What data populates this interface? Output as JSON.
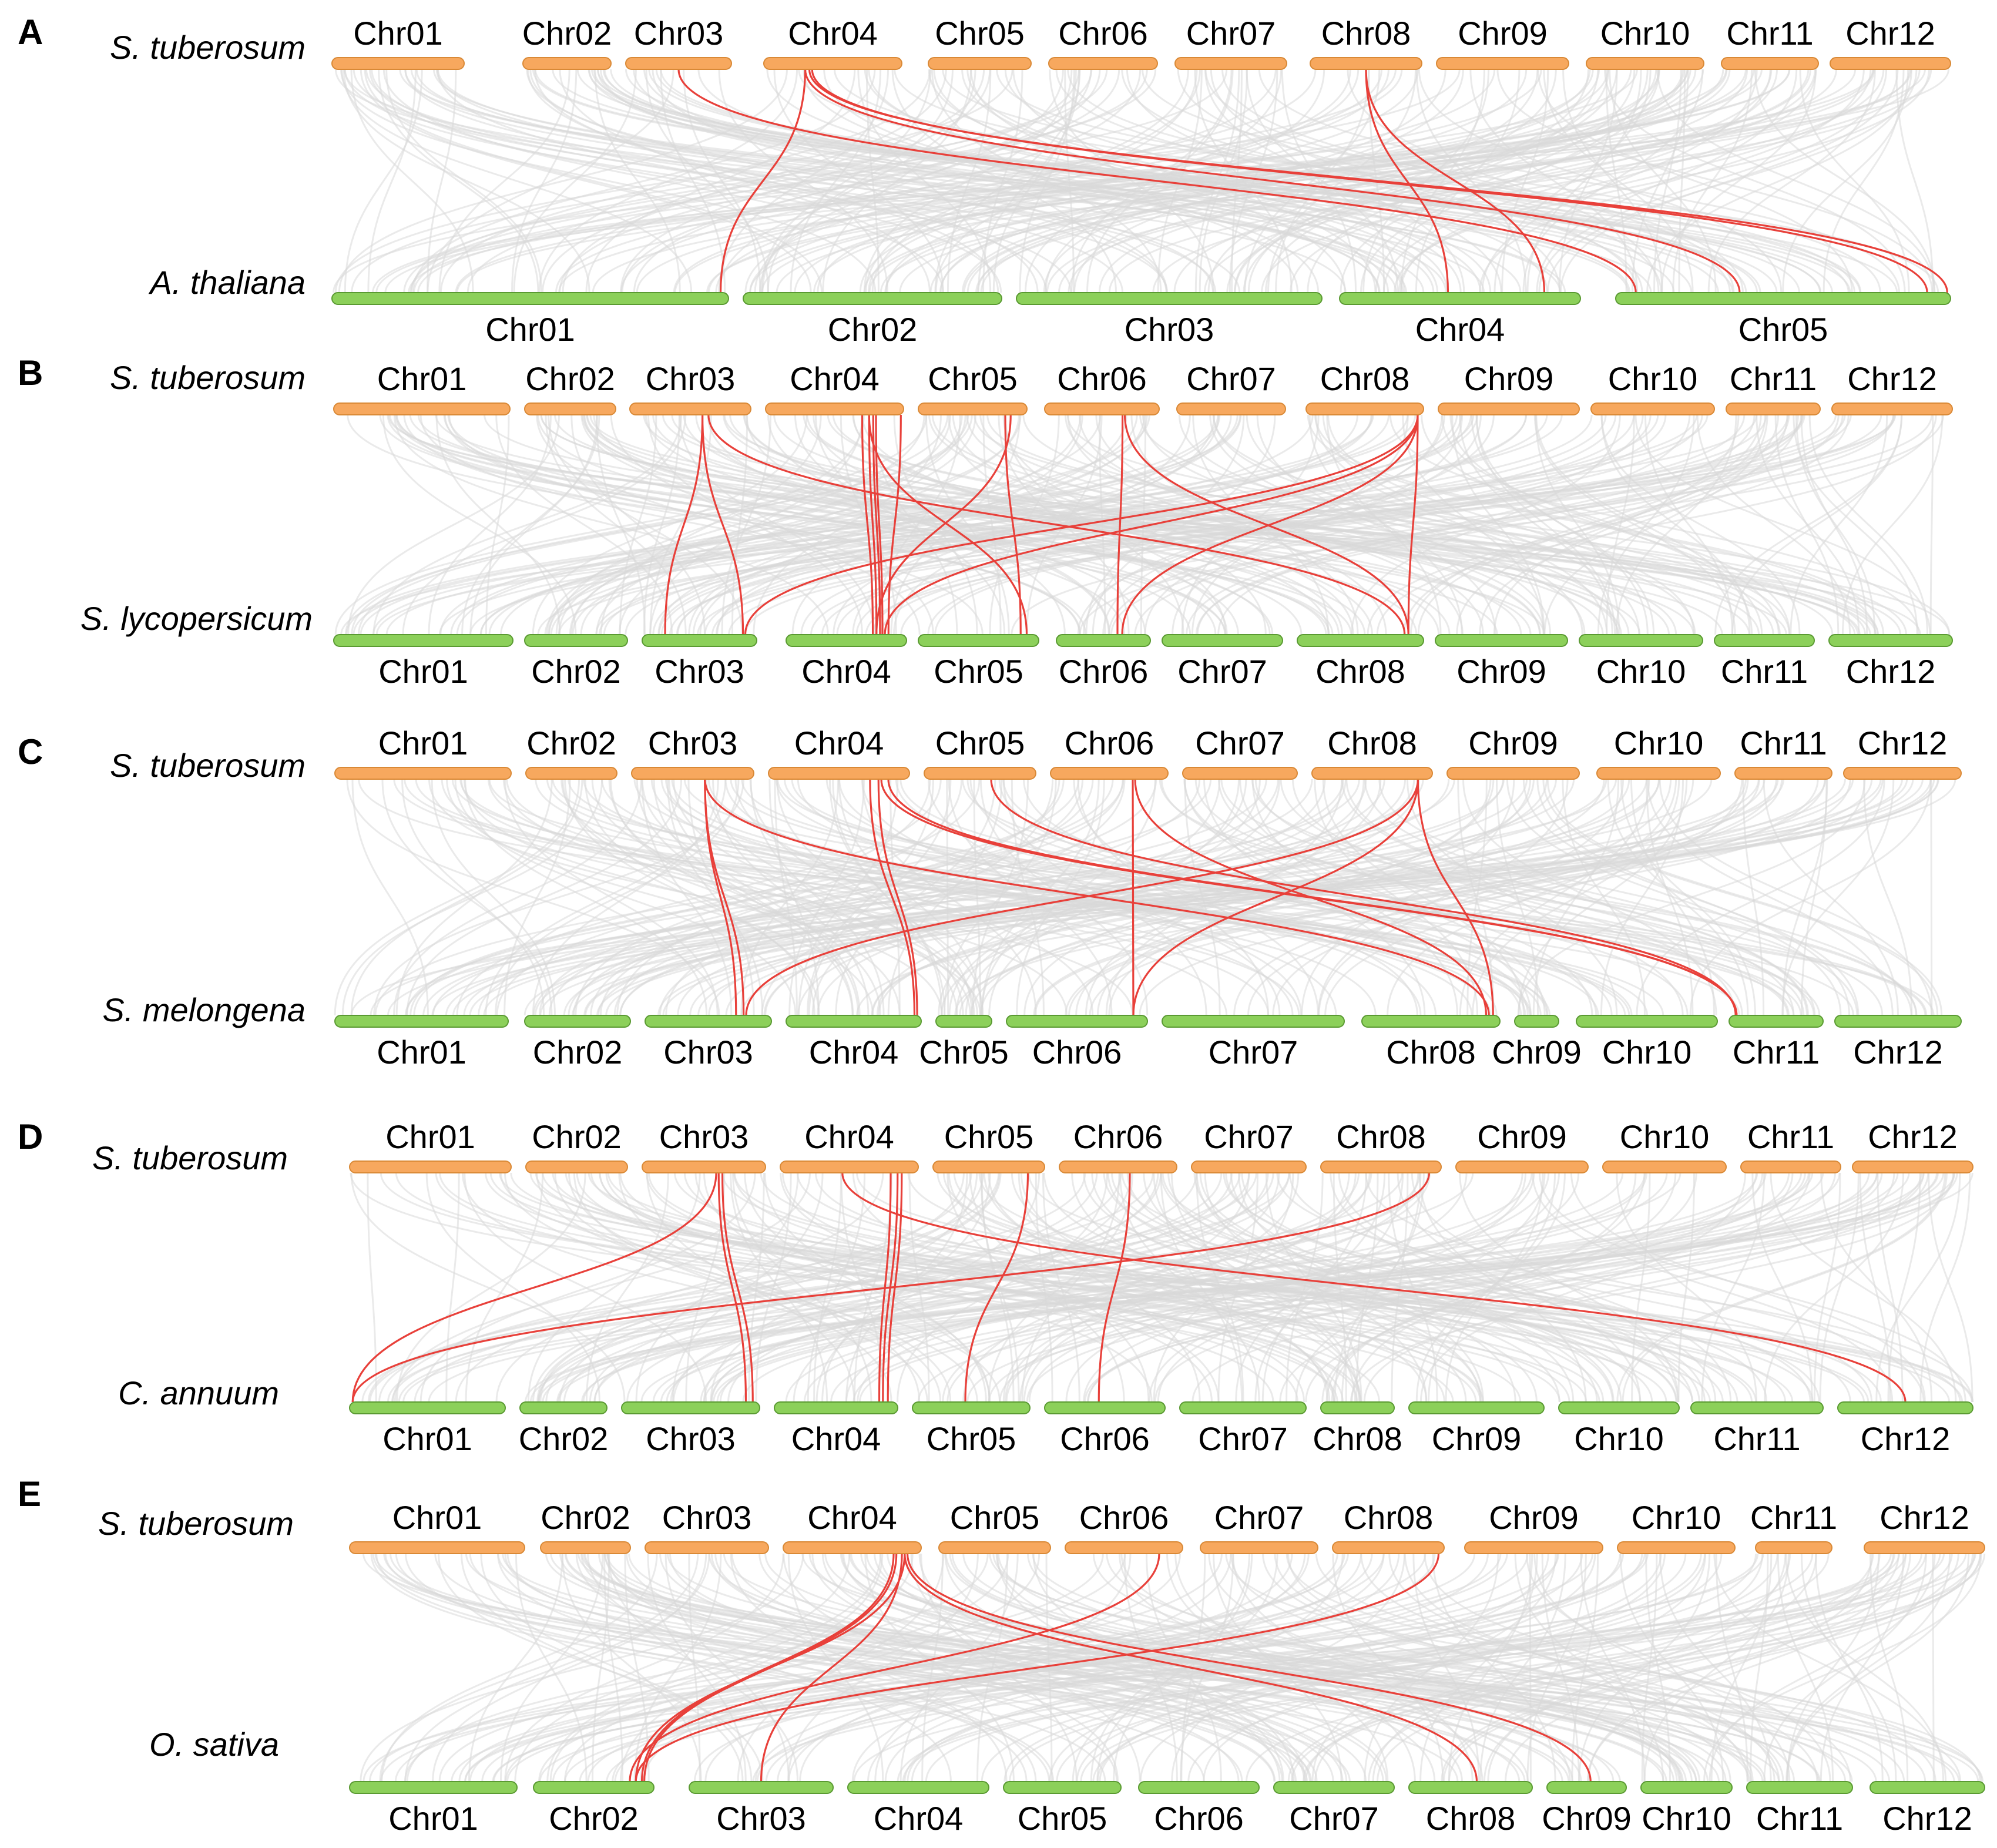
{
  "colors": {
    "top_bar": "#f7a85e",
    "top_bar_edge": "#d98936",
    "bottom_bar": "#8cd05a",
    "bottom_bar_edge": "#5a9a32",
    "highlight_link": "#e8403a",
    "background_link": "#d9d9d9"
  },
  "panels": [
    {
      "letter": "A",
      "top_species": "S. tuberosum",
      "bottom_species": "A. thaliana",
      "top_chromosomes": [
        "Chr01",
        "Chr02",
        "Chr03",
        "Chr04",
        "Chr05",
        "Chr06",
        "Chr07",
        "Chr08",
        "Chr09",
        "Chr10",
        "Chr11",
        "Chr12"
      ],
      "bottom_chromosomes": [
        "Chr01",
        "Chr02",
        "Chr03",
        "Chr04",
        "Chr05"
      ],
      "bottom_label_position": "below"
    },
    {
      "letter": "B",
      "top_species": "S. tuberosum",
      "bottom_species": "S. lycopersicum",
      "top_chromosomes": [
        "Chr01",
        "Chr02",
        "Chr03",
        "Chr04",
        "Chr05",
        "Chr06",
        "Chr07",
        "Chr08",
        "Chr09",
        "Chr10",
        "Chr11",
        "Chr12"
      ],
      "bottom_chromosomes": [
        "Chr01",
        "Chr02",
        "Chr03",
        "Chr04",
        "Chr05",
        "Chr06",
        "Chr07",
        "Chr08",
        "Chr09",
        "Chr10",
        "Chr11",
        "Chr12"
      ],
      "bottom_label_position": "below"
    },
    {
      "letter": "C",
      "top_species": "S. tuberosum",
      "bottom_species": "S. melongena",
      "top_chromosomes": [
        "Chr01",
        "Chr02",
        "Chr03",
        "Chr04",
        "Chr05",
        "Chr06",
        "Chr07",
        "Chr08",
        "Chr09",
        "Chr10",
        "Chr11",
        "Chr12"
      ],
      "bottom_chromosomes": [
        "Chr01",
        "Chr02",
        "Chr03",
        "Chr04",
        "Chr05",
        "Chr06",
        "Chr07",
        "Chr08",
        "Chr09",
        "Chr10",
        "Chr11",
        "Chr12"
      ],
      "bottom_label_position": "below"
    },
    {
      "letter": "D",
      "top_species": "S. tuberosum",
      "bottom_species": "C. annuum",
      "top_chromosomes": [
        "Chr01",
        "Chr02",
        "Chr03",
        "Chr04",
        "Chr05",
        "Chr06",
        "Chr07",
        "Chr08",
        "Chr09",
        "Chr10",
        "Chr11",
        "Chr12"
      ],
      "bottom_chromosomes": [
        "Chr01",
        "Chr02",
        "Chr03",
        "Chr04",
        "Chr05",
        "Chr06",
        "Chr07",
        "Chr08",
        "Chr09",
        "Chr10",
        "Chr11",
        "Chr12"
      ],
      "bottom_label_position": "below"
    },
    {
      "letter": "E",
      "top_species": "S. tuberosum",
      "bottom_species": "O. sativa",
      "top_chromosomes": [
        "Chr01",
        "Chr02",
        "Chr03",
        "Chr04",
        "Chr05",
        "Chr06",
        "Chr07",
        "Chr08",
        "Chr09",
        "Chr10",
        "Chr11",
        "Chr12"
      ],
      "bottom_chromosomes": [
        "Chr01",
        "Chr02",
        "Chr03",
        "Chr04",
        "Chr05",
        "Chr06",
        "Chr07",
        "Chr08",
        "Chr09",
        "Chr10",
        "Chr11",
        "Chr12"
      ],
      "bottom_label_position": "below"
    }
  ]
}
